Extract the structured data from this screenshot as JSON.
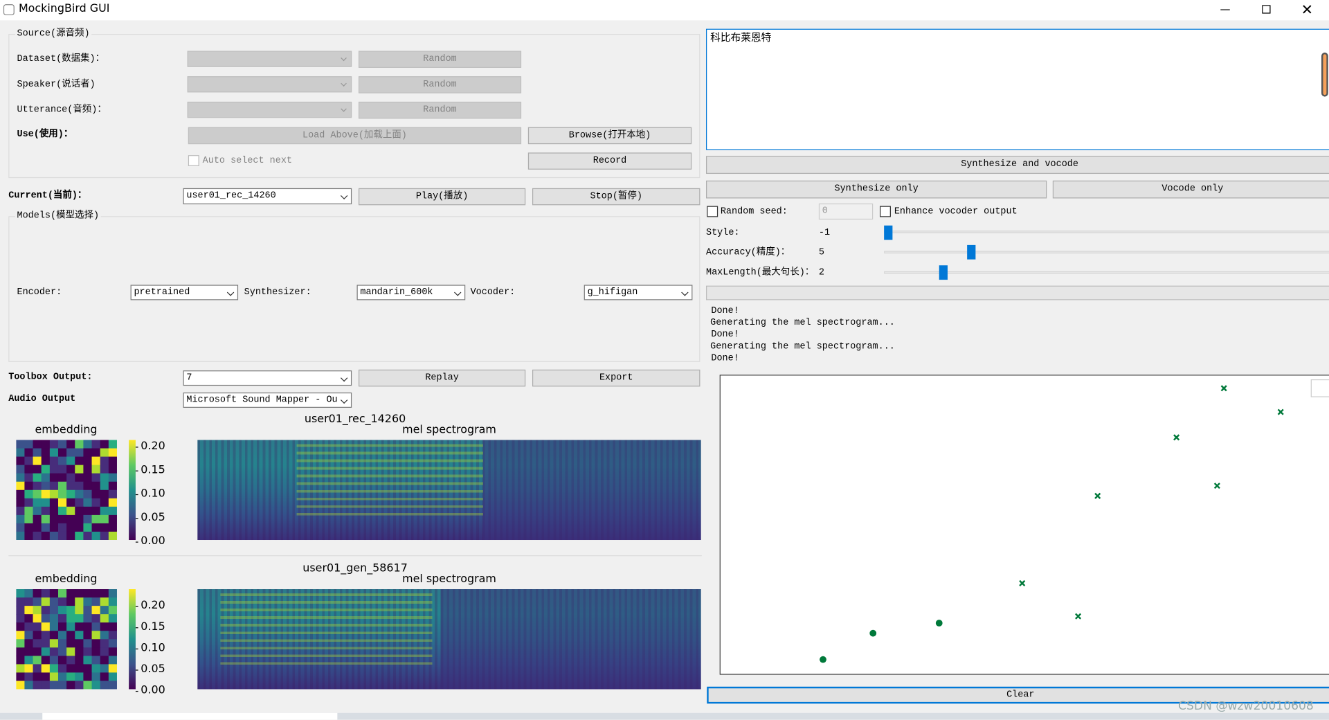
{
  "window": {
    "title": "MockingBird GUI"
  },
  "source": {
    "title": "Source(源音频)",
    "dataset_label": "Dataset(数据集)：",
    "speaker_label": "Speaker(说话者)",
    "utterance_label": "Utterance(音频)：",
    "random_buttons": [
      "Random",
      "Random",
      "Random"
    ],
    "use_label": "Use(使用)：",
    "load_above": "Load Above(加载上面)",
    "browse": "Browse(打开本地)",
    "auto_select": "Auto select next",
    "record": "Record"
  },
  "current": {
    "label": "Current(当前)：",
    "value": "user01_rec_14260",
    "play": "Play(播放)",
    "stop": "Stop(暂停)"
  },
  "models": {
    "title": "Models(模型选择)",
    "encoder_label": "Encoder:",
    "encoder": "pretrained",
    "synthesizer_label": "Synthesizer:",
    "synthesizer": "mandarin_600k",
    "vocoder_label": "Vocoder:",
    "vocoder": "g_hifigan"
  },
  "toolbox": {
    "label": "Toolbox Output:",
    "value": "7",
    "replay": "Replay",
    "export": "Export",
    "audio_label": "Audio Output",
    "audio_value": "Microsoft Sound Mapper - Ou"
  },
  "plots": [
    {
      "title": "user01_rec_14260",
      "embedding_title": "embedding",
      "mel_title": "mel spectrogram",
      "colorbar_ticks": [
        "0.20",
        "0.15",
        "0.10",
        "0.05",
        "0.00"
      ]
    },
    {
      "title": "user01_gen_58617",
      "embedding_title": "embedding",
      "mel_title": "mel spectrogram",
      "colorbar_ticks": [
        "0.20",
        "0.15",
        "0.10",
        "0.05",
        "0.00"
      ]
    }
  ],
  "synthesis": {
    "text": "科比布莱恩特",
    "synthesize_and_vocode": "Synthesize and vocode",
    "synthesize_only": "Synthesize only",
    "vocode_only": "Vocode only",
    "random_seed": "Random seed:",
    "seed_value": "0",
    "enhance": "Enhance vocoder output",
    "style_label": "Style:",
    "style_value": "-1",
    "accuracy_label": "Accuracy(精度)：",
    "accuracy_value": "5",
    "maxlength_label": "MaxLength(最大句长)：",
    "maxlength_value": "2"
  },
  "log": [
    "Done!",
    "Generating the mel spectrogram...",
    "Done!",
    "Generating the mel spectrogram...",
    "Done!"
  ],
  "clear": "Clear",
  "watermark": "CSDN @wzw20010608"
}
